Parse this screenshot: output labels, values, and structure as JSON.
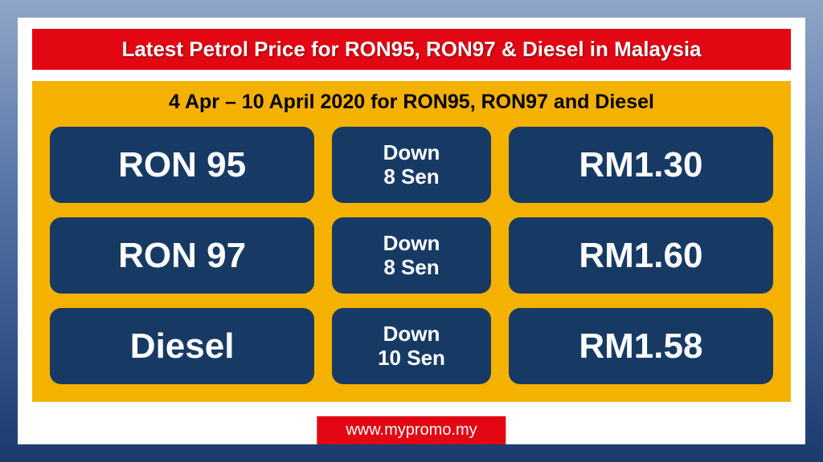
{
  "title": "Latest Petrol Price for RON95, RON97 & Diesel in Malaysia",
  "subtitle": "4 Apr – 10 April 2020 for RON95, RON97 and Diesel",
  "colors": {
    "title_bg": "#e30613",
    "title_text": "#ffffff",
    "panel_bg": "#f5b100",
    "pill_bg": "#173a65",
    "pill_text": "#ffffff",
    "page_bg": "#ffffff",
    "gradient_top": "#8fa5c7",
    "gradient_bottom": "#1a3a6e",
    "subtitle_text": "#000000"
  },
  "typography": {
    "title_fontsize": 26,
    "subtitle_fontsize": 25,
    "fuel_fontsize": 44,
    "change_fontsize": 26,
    "price_fontsize": 44,
    "font_family": "Arial"
  },
  "layout": {
    "pill_border_radius": 14,
    "pill_height": 95,
    "row_gap": 22
  },
  "rows": [
    {
      "fuel": "RON 95",
      "change_line1": "Down",
      "change_line2": "8 Sen",
      "price": "RM1.30"
    },
    {
      "fuel": "RON 97",
      "change_line1": "Down",
      "change_line2": "8 Sen",
      "price": "RM1.60"
    },
    {
      "fuel": "Diesel",
      "change_line1": "Down",
      "change_line2": "10 Sen",
      "price": "RM1.58"
    }
  ],
  "footer": "www.mypromo.my"
}
